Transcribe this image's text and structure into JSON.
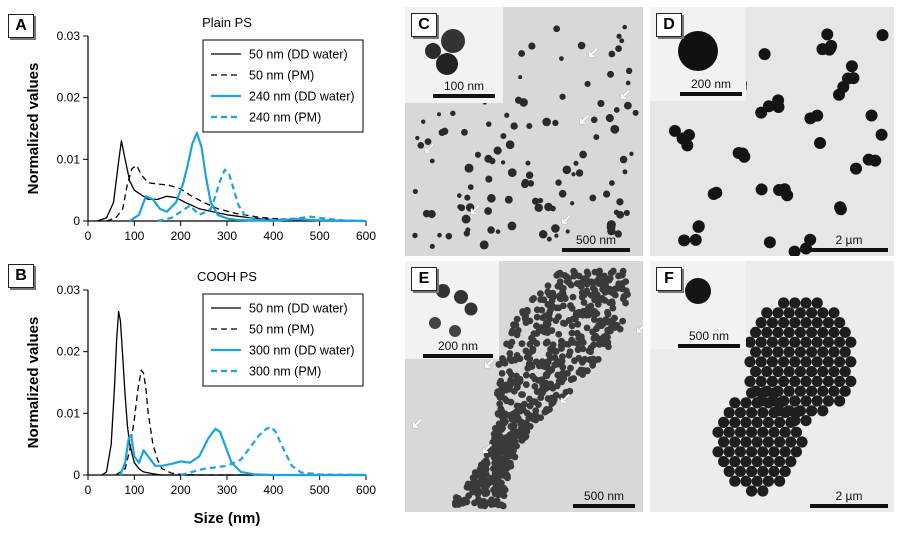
{
  "panel_labels": {
    "A": "A",
    "B": "B",
    "C": "C",
    "D": "D",
    "E": "E",
    "F": "F"
  },
  "chart_data": [
    {
      "type": "line",
      "title": "Plain PS",
      "xlabel": "",
      "ylabel": "Normalized values",
      "xlim": [
        0,
        600
      ],
      "ylim": [
        0,
        0.03
      ],
      "xticks": [
        "0",
        "100",
        "200",
        "300",
        "400",
        "500",
        "600"
      ],
      "yticks": [
        "0",
        "0.01",
        "0.02",
        "0.03"
      ],
      "legend": "top-right",
      "series": [
        {
          "name": "50 nm (DD water)",
          "color": "#000000",
          "style": "solid",
          "x": [
            20,
            40,
            55,
            65,
            72,
            80,
            90,
            100,
            110,
            130,
            150,
            170,
            190,
            210,
            240,
            270,
            300,
            350,
            400,
            450,
            500,
            600
          ],
          "y": [
            0,
            0.0005,
            0.003,
            0.009,
            0.013,
            0.01,
            0.0065,
            0.005,
            0.0045,
            0.0035,
            0.0035,
            0.004,
            0.0038,
            0.003,
            0.002,
            0.0015,
            0.001,
            0.0005,
            0.0002,
            0.0001,
            0,
            0
          ]
        },
        {
          "name": "50 nm (PM)",
          "color": "#000000",
          "style": "dashed",
          "x": [
            40,
            60,
            75,
            85,
            95,
            105,
            115,
            130,
            150,
            175,
            200,
            220,
            250,
            280,
            320,
            370,
            420,
            500,
            600
          ],
          "y": [
            0,
            0.0005,
            0.002,
            0.006,
            0.0085,
            0.009,
            0.0075,
            0.0062,
            0.006,
            0.0058,
            0.0052,
            0.0042,
            0.003,
            0.002,
            0.0012,
            0.0006,
            0.0003,
            0.0001,
            0
          ]
        },
        {
          "name": "240 nm (DD water)",
          "color": "#1aa3df",
          "style": "solid",
          "x": [
            90,
            110,
            125,
            140,
            155,
            170,
            190,
            205,
            215,
            225,
            235,
            245,
            255,
            265,
            280,
            300,
            320,
            350,
            400,
            450,
            500,
            600
          ],
          "y": [
            0,
            0.001,
            0.004,
            0.0035,
            0.002,
            0.0015,
            0.003,
            0.006,
            0.009,
            0.0125,
            0.0143,
            0.012,
            0.007,
            0.003,
            0.001,
            0.0004,
            0.0002,
            0.0001,
            5e-05,
            0.0003,
            0.0001,
            0
          ]
        },
        {
          "name": "240 nm (PM)",
          "color": "#1aa3df",
          "style": "dashed",
          "x": [
            150,
            180,
            200,
            220,
            240,
            255,
            265,
            275,
            285,
            295,
            305,
            315,
            325,
            340,
            360,
            400,
            450,
            480,
            510,
            550,
            600
          ],
          "y": [
            0,
            0.0005,
            0.0015,
            0.0025,
            0.001,
            0.0015,
            0.002,
            0.004,
            0.0065,
            0.0083,
            0.0075,
            0.005,
            0.0025,
            0.0008,
            0.0003,
            0.0002,
            0.0004,
            0.0007,
            0.0004,
            0.0001,
            0
          ]
        }
      ]
    },
    {
      "type": "line",
      "title": "COOH PS",
      "xlabel": "Size (nm)",
      "ylabel": "Normalized values",
      "xlim": [
        0,
        600
      ],
      "ylim": [
        0,
        0.03
      ],
      "xticks": [
        "0",
        "100",
        "200",
        "300",
        "400",
        "500",
        "600"
      ],
      "yticks": [
        "0",
        "0.01",
        "0.02",
        "0.03"
      ],
      "legend": "top-right",
      "series": [
        {
          "name": "50 nm (DD water)",
          "color": "#000000",
          "style": "solid",
          "x": [
            30,
            40,
            50,
            57,
            62,
            66,
            70,
            75,
            80,
            85,
            90,
            100,
            110,
            120,
            140,
            160,
            200,
            250,
            300,
            600
          ],
          "y": [
            0,
            0.0005,
            0.005,
            0.014,
            0.022,
            0.0265,
            0.025,
            0.019,
            0.013,
            0.008,
            0.005,
            0.002,
            0.001,
            0.0005,
            0.0002,
            0,
            0,
            0,
            0,
            0
          ]
        },
        {
          "name": "50 nm (PM)",
          "color": "#000000",
          "style": "dashed",
          "x": [
            60,
            80,
            90,
            100,
            108,
            115,
            120,
            125,
            130,
            140,
            150,
            160,
            180,
            200,
            250,
            300,
            600
          ],
          "y": [
            0,
            0.001,
            0.004,
            0.009,
            0.014,
            0.017,
            0.0165,
            0.014,
            0.01,
            0.005,
            0.0025,
            0.001,
            0.0003,
            0.0001,
            0,
            0,
            0
          ]
        },
        {
          "name": "300 nm (DD water)",
          "color": "#1aa3df",
          "style": "solid",
          "x": [
            70,
            80,
            88,
            93,
            100,
            110,
            120,
            130,
            145,
            160,
            180,
            200,
            220,
            240,
            260,
            275,
            285,
            295,
            310,
            330,
            360,
            400,
            600
          ],
          "y": [
            0,
            0.002,
            0.006,
            0.0065,
            0.003,
            0.002,
            0.004,
            0.003,
            0.0015,
            0.0015,
            0.0018,
            0.0022,
            0.002,
            0.003,
            0.006,
            0.0075,
            0.007,
            0.005,
            0.002,
            0.0005,
            0.0001,
            0,
            0
          ]
        },
        {
          "name": "300 nm (PM)",
          "color": "#1aa3df",
          "style": "dashed",
          "x": [
            200,
            250,
            300,
            330,
            350,
            370,
            385,
            395,
            405,
            420,
            440,
            460,
            500,
            600
          ],
          "y": [
            0,
            0.001,
            0.0015,
            0.0025,
            0.0045,
            0.0065,
            0.0075,
            0.0078,
            0.007,
            0.0045,
            0.0015,
            0.0004,
            0.0001,
            0
          ]
        }
      ]
    }
  ],
  "tem_panels": [
    {
      "id": "C",
      "inset_scale": "100 nm",
      "main_scale": "500 nm"
    },
    {
      "id": "D",
      "inset_scale": "200 nm",
      "main_scale": "2 µm"
    },
    {
      "id": "E",
      "inset_scale": "200 nm",
      "main_scale": "500 nm"
    },
    {
      "id": "F",
      "inset_scale": "500 nm",
      "main_scale": "2 µm"
    }
  ]
}
